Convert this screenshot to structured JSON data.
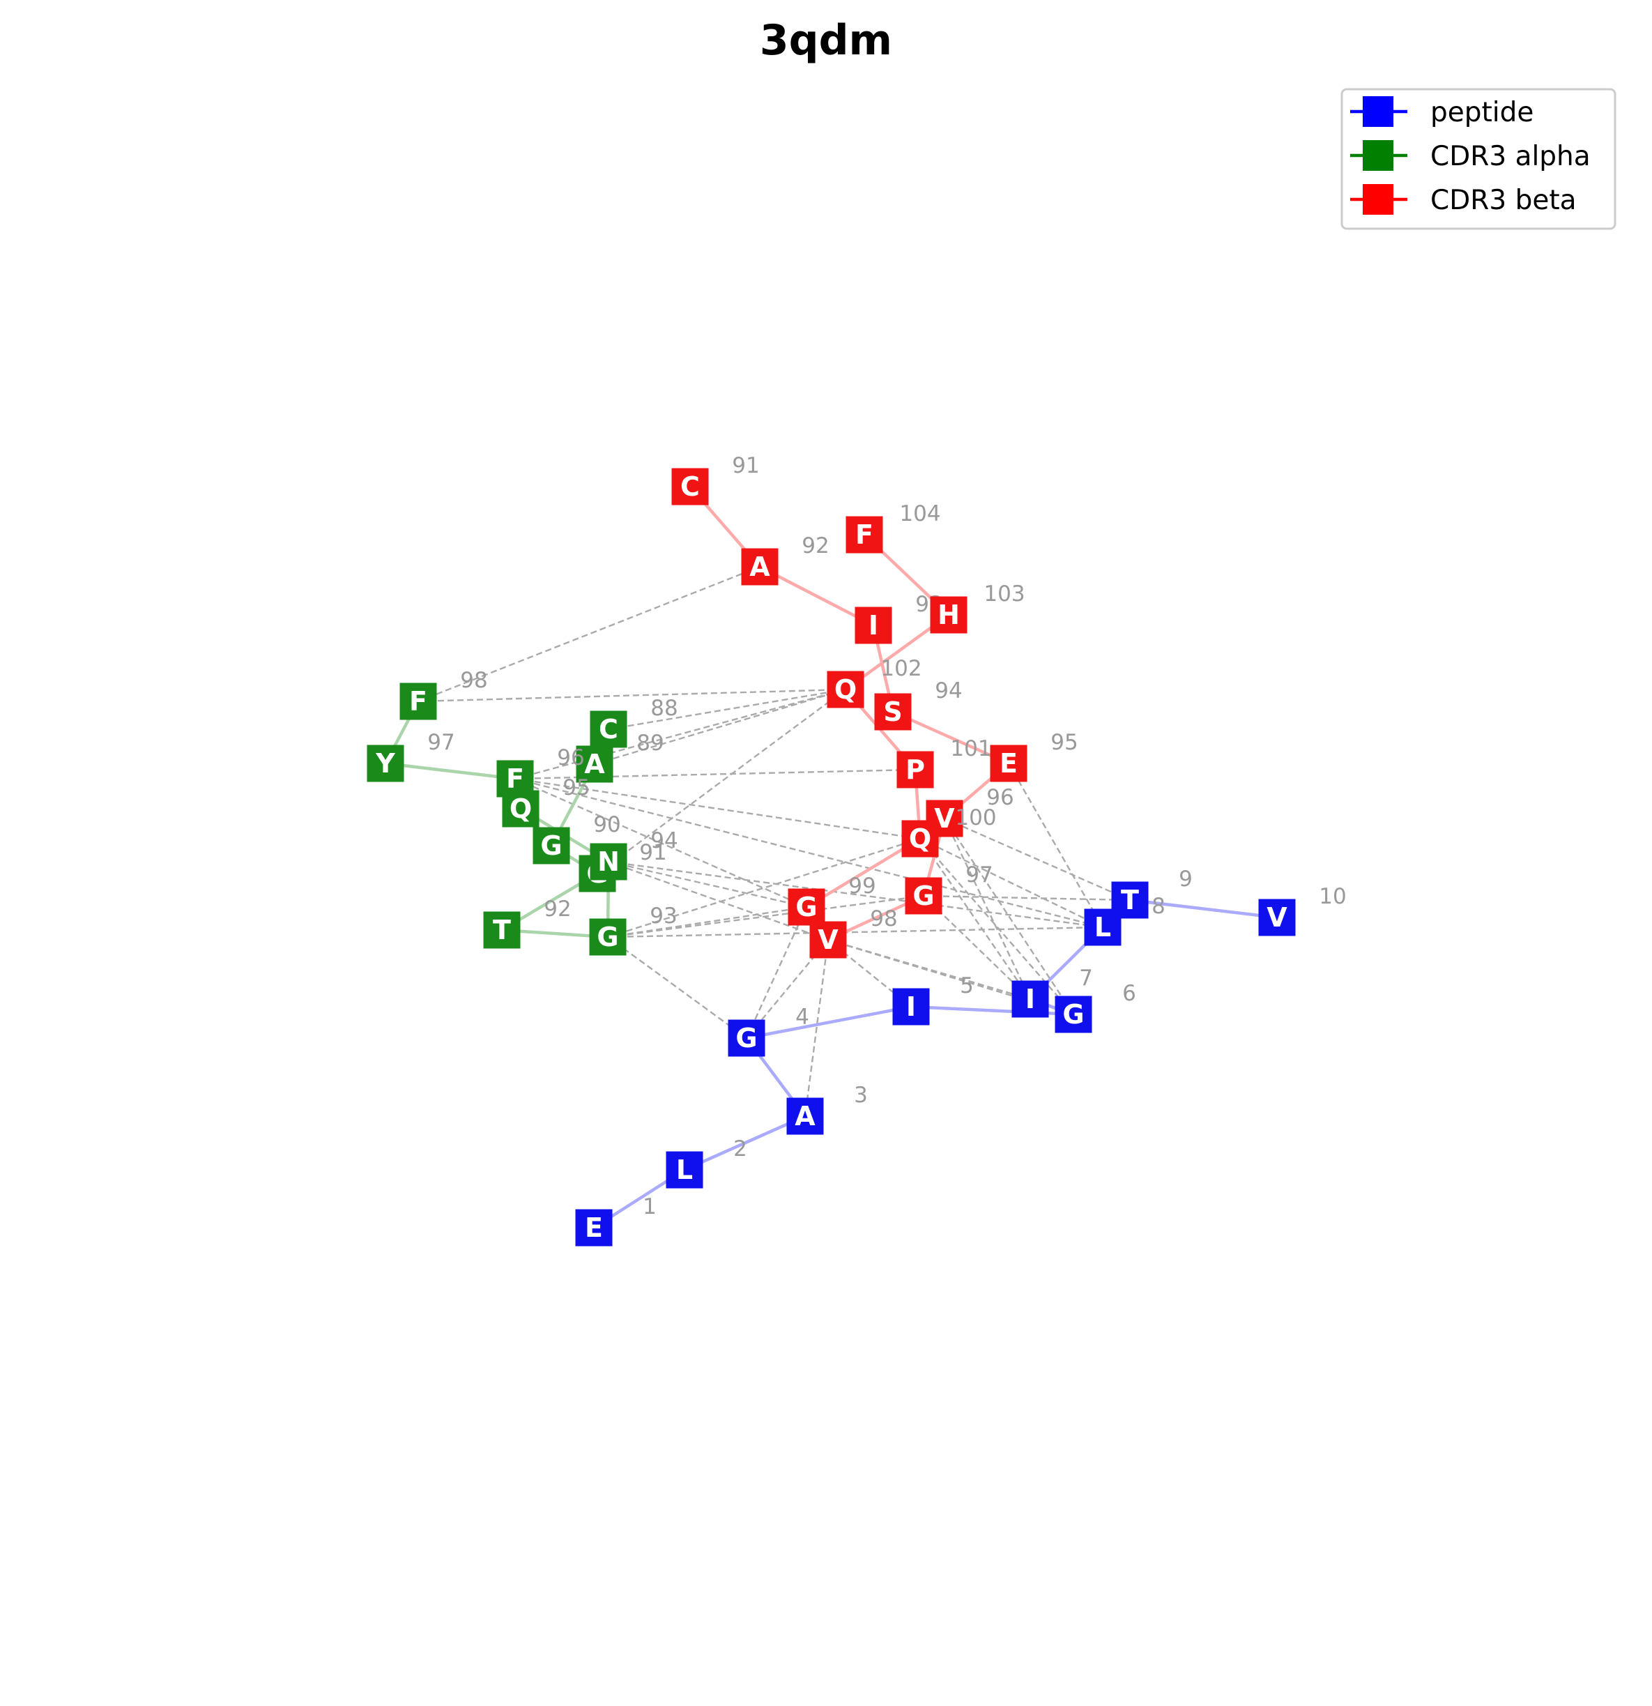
{
  "title": "3qdm",
  "colors": {
    "peptide": "#0000ff",
    "cdr3_alpha": "#007f00",
    "cdr3_beta": "#ff0000",
    "contact": "#aaaaaa"
  },
  "legend": [
    {
      "label": "peptide",
      "color": "#0000ff"
    },
    {
      "label": "CDR3 alpha",
      "color": "#007f00"
    },
    {
      "label": "CDR3 beta",
      "color": "#ff0000"
    }
  ],
  "chains": {
    "peptide": {
      "residues": [
        {
          "letter": "E",
          "number": "1"
        },
        {
          "letter": "L",
          "number": "2"
        },
        {
          "letter": "A",
          "number": "3"
        },
        {
          "letter": "G",
          "number": "4"
        },
        {
          "letter": "I",
          "number": "5"
        },
        {
          "letter": "G",
          "number": "6"
        },
        {
          "letter": "I",
          "number": "7"
        },
        {
          "letter": "L",
          "number": "8"
        },
        {
          "letter": "T",
          "number": "9"
        },
        {
          "letter": "V",
          "number": "10"
        }
      ]
    },
    "cdr3_alpha": {
      "residues": [
        {
          "letter": "C",
          "number": "88"
        },
        {
          "letter": "A",
          "number": "89"
        },
        {
          "letter": "G",
          "number": "90"
        },
        {
          "letter": "G",
          "number": "91"
        },
        {
          "letter": "T",
          "number": "92"
        },
        {
          "letter": "G",
          "number": "93"
        },
        {
          "letter": "N",
          "number": "94"
        },
        {
          "letter": "Q",
          "number": "95"
        },
        {
          "letter": "F",
          "number": "96"
        },
        {
          "letter": "Y",
          "number": "97"
        },
        {
          "letter": "F",
          "number": "98"
        }
      ]
    },
    "cdr3_beta": {
      "residues": [
        {
          "letter": "C",
          "number": "91"
        },
        {
          "letter": "A",
          "number": "92"
        },
        {
          "letter": "I",
          "number": "93"
        },
        {
          "letter": "S",
          "number": "94"
        },
        {
          "letter": "E",
          "number": "95"
        },
        {
          "letter": "V",
          "number": "96"
        },
        {
          "letter": "G",
          "number": "97"
        },
        {
          "letter": "V",
          "number": "98"
        },
        {
          "letter": "G",
          "number": "99"
        },
        {
          "letter": "Q",
          "number": "100"
        },
        {
          "letter": "P",
          "number": "101"
        },
        {
          "letter": "Q",
          "number": "102"
        },
        {
          "letter": "H",
          "number": "103"
        },
        {
          "letter": "F",
          "number": "104"
        }
      ]
    }
  },
  "contacts": [
    [
      "cdr3_alpha:98",
      "cdr3_beta:92"
    ],
    [
      "cdr3_alpha:98",
      "cdr3_beta:102"
    ],
    [
      "cdr3_alpha:89",
      "cdr3_beta:102"
    ],
    [
      "cdr3_alpha:96",
      "cdr3_beta:102"
    ],
    [
      "cdr3_alpha:91",
      "cdr3_beta:102"
    ],
    [
      "cdr3_alpha:88",
      "cdr3_beta:102"
    ],
    [
      "cdr3_alpha:96",
      "cdr3_beta:101"
    ],
    [
      "cdr3_alpha:96",
      "cdr3_beta:100"
    ],
    [
      "cdr3_alpha:96",
      "cdr3_beta:99"
    ],
    [
      "cdr3_alpha:96",
      "peptide:8"
    ],
    [
      "cdr3_alpha:94",
      "cdr3_beta:99"
    ],
    [
      "cdr3_alpha:94",
      "cdr3_beta:98"
    ],
    [
      "cdr3_alpha:94",
      "peptide:8"
    ],
    [
      "cdr3_alpha:93",
      "cdr3_beta:99"
    ],
    [
      "cdr3_alpha:93",
      "cdr3_beta:97"
    ],
    [
      "cdr3_alpha:93",
      "cdr3_beta:100"
    ],
    [
      "cdr3_alpha:93",
      "peptide:8"
    ],
    [
      "cdr3_alpha:93",
      "peptide:4"
    ],
    [
      "cdr3_beta:99",
      "peptide:4"
    ],
    [
      "cdr3_beta:98",
      "peptide:4"
    ],
    [
      "cdr3_beta:98",
      "peptide:3"
    ],
    [
      "cdr3_beta:98",
      "peptide:5"
    ],
    [
      "cdr3_beta:98",
      "peptide:7"
    ],
    [
      "cdr3_beta:98",
      "peptide:6"
    ],
    [
      "cdr3_beta:97",
      "peptide:9"
    ],
    [
      "cdr3_beta:97",
      "peptide:7"
    ],
    [
      "cdr3_beta:100",
      "peptide:7"
    ],
    [
      "cdr3_beta:100",
      "peptide:6"
    ],
    [
      "cdr3_beta:100",
      "peptide:8"
    ],
    [
      "cdr3_beta:96",
      "peptide:7"
    ],
    [
      "cdr3_beta:96",
      "peptide:9"
    ],
    [
      "cdr3_beta:96",
      "peptide:6"
    ],
    [
      "cdr3_beta:95",
      "peptide:8"
    ]
  ]
}
